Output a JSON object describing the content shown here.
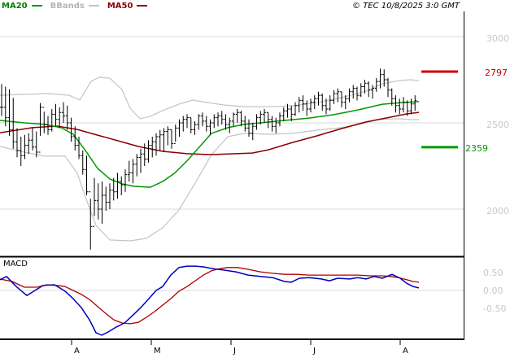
{
  "legend": {
    "ma20_label": "MA20",
    "bbands_label": "BBands",
    "ma50_label": "MA50"
  },
  "copyright": "© TEC 10/8/2025 3:0 GMT",
  "macd_label": "MACD",
  "colors": {
    "ma20": "#009900",
    "ma50": "#8b0000",
    "bbands": "#c4c4c4",
    "bars": "#000000",
    "grid": "#d8d8d8",
    "axis_text": "#c8c8c8",
    "resistance": "#cc0000",
    "support": "#009900",
    "macd_line": "#0000bb",
    "macd_signal": "#aa0000",
    "frame": "#000000",
    "month_text": "#000000"
  },
  "chart_data": {
    "type": "ohlc-with-indicators",
    "title": "",
    "price_axis": {
      "ticks": [
        3000,
        2500,
        2000
      ],
      "grid": true
    },
    "macd_axis": {
      "ticks": [
        "0.50",
        "0.00",
        "-0.50"
      ],
      "tick_values": [
        0.5,
        0,
        -0.5
      ]
    },
    "x_axis": {
      "labels": [
        "A",
        "M",
        "J",
        "J",
        "A"
      ],
      "tick_x": [
        88,
        186,
        284,
        382,
        492
      ]
    },
    "levels": {
      "resistance": 2797,
      "support": 2359
    },
    "bars_hlc": [
      [
        2725,
        2540,
        2590
      ],
      [
        2710,
        2480,
        2530
      ],
      [
        2695,
        2425,
        2460
      ],
      [
        2645,
        2350,
        2390
      ],
      [
        2470,
        2300,
        2340
      ],
      [
        2420,
        2250,
        2310
      ],
      [
        2430,
        2290,
        2370
      ],
      [
        2440,
        2320,
        2400
      ],
      [
        2470,
        2340,
        2360
      ],
      [
        2450,
        2300,
        2330
      ],
      [
        2615,
        2425,
        2590
      ],
      [
        2565,
        2440,
        2490
      ],
      [
        2540,
        2430,
        2460
      ],
      [
        2580,
        2450,
        2550
      ],
      [
        2610,
        2480,
        2520
      ],
      [
        2590,
        2470,
        2560
      ],
      [
        2620,
        2500,
        2540
      ],
      [
        2600,
        2460,
        2500
      ],
      [
        2530,
        2390,
        2420
      ],
      [
        2480,
        2340,
        2370
      ],
      [
        2420,
        2290,
        2310
      ],
      [
        2340,
        2200,
        2230
      ],
      [
        2310,
        2080,
        2100
      ],
      [
        2060,
        1765,
        1900
      ],
      [
        2180,
        1960,
        2050
      ],
      [
        2150,
        1940,
        2000
      ],
      [
        2160,
        1915,
        2080
      ],
      [
        2130,
        1990,
        2040
      ],
      [
        2150,
        2000,
        2110
      ],
      [
        2180,
        2050,
        2100
      ],
      [
        2210,
        2060,
        2160
      ],
      [
        2190,
        2080,
        2140
      ],
      [
        2230,
        2100,
        2200
      ],
      [
        2280,
        2160,
        2210
      ],
      [
        2290,
        2150,
        2260
      ],
      [
        2320,
        2190,
        2300
      ],
      [
        2350,
        2210,
        2320
      ],
      [
        2380,
        2250,
        2290
      ],
      [
        2400,
        2270,
        2370
      ],
      [
        2420,
        2300,
        2390
      ],
      [
        2440,
        2310,
        2420
      ],
      [
        2460,
        2340,
        2430
      ],
      [
        2470,
        2330,
        2450
      ],
      [
        2480,
        2370,
        2460
      ],
      [
        2460,
        2350,
        2380
      ],
      [
        2490,
        2390,
        2470
      ],
      [
        2520,
        2420,
        2500
      ],
      [
        2540,
        2450,
        2520
      ],
      [
        2550,
        2470,
        2530
      ],
      [
        2530,
        2440,
        2460
      ],
      [
        2510,
        2430,
        2490
      ],
      [
        2550,
        2460,
        2540
      ],
      [
        2560,
        2480,
        2510
      ],
      [
        2540,
        2450,
        2480
      ],
      [
        2520,
        2430,
        2500
      ],
      [
        2550,
        2470,
        2530
      ],
      [
        2560,
        2480,
        2540
      ],
      [
        2570,
        2490,
        2520
      ],
      [
        2550,
        2460,
        2490
      ],
      [
        2530,
        2440,
        2510
      ],
      [
        2560,
        2480,
        2550
      ],
      [
        2580,
        2500,
        2560
      ],
      [
        2570,
        2480,
        2510
      ],
      [
        2540,
        2450,
        2470
      ],
      [
        2520,
        2420,
        2440
      ],
      [
        2500,
        2400,
        2480
      ],
      [
        2550,
        2460,
        2530
      ],
      [
        2570,
        2490,
        2550
      ],
      [
        2580,
        2500,
        2560
      ],
      [
        2560,
        2470,
        2520
      ],
      [
        2540,
        2450,
        2480
      ],
      [
        2530,
        2440,
        2500
      ],
      [
        2560,
        2480,
        2540
      ],
      [
        2590,
        2510,
        2570
      ],
      [
        2610,
        2530,
        2580
      ],
      [
        2600,
        2510,
        2550
      ],
      [
        2620,
        2540,
        2600
      ],
      [
        2650,
        2560,
        2630
      ],
      [
        2660,
        2570,
        2610
      ],
      [
        2630,
        2540,
        2580
      ],
      [
        2640,
        2560,
        2620
      ],
      [
        2660,
        2580,
        2640
      ],
      [
        2680,
        2600,
        2660
      ],
      [
        2670,
        2570,
        2600
      ],
      [
        2640,
        2550,
        2580
      ],
      [
        2660,
        2570,
        2630
      ],
      [
        2690,
        2610,
        2670
      ],
      [
        2700,
        2620,
        2680
      ],
      [
        2680,
        2590,
        2620
      ],
      [
        2660,
        2580,
        2640
      ],
      [
        2700,
        2620,
        2680
      ],
      [
        2720,
        2640,
        2700
      ],
      [
        2710,
        2630,
        2660
      ],
      [
        2730,
        2650,
        2710
      ],
      [
        2750,
        2670,
        2730
      ],
      [
        2740,
        2650,
        2690
      ],
      [
        2720,
        2640,
        2700
      ],
      [
        2760,
        2680,
        2740
      ],
      [
        2815,
        2700,
        2780
      ],
      [
        2810,
        2710,
        2750
      ],
      [
        2760,
        2650,
        2690
      ],
      [
        2700,
        2600,
        2640
      ],
      [
        2660,
        2560,
        2600
      ],
      [
        2640,
        2550,
        2580
      ],
      [
        2650,
        2560,
        2620
      ],
      [
        2630,
        2540,
        2570
      ],
      [
        2640,
        2550,
        2610
      ],
      [
        2660,
        2570,
        2630
      ]
    ],
    "ma20": [
      [
        0,
        2514
      ],
      [
        30,
        2500
      ],
      [
        55,
        2491
      ],
      [
        75,
        2472
      ],
      [
        90,
        2434
      ],
      [
        105,
        2340
      ],
      [
        120,
        2236
      ],
      [
        135,
        2175
      ],
      [
        150,
        2146
      ],
      [
        165,
        2132
      ],
      [
        185,
        2127
      ],
      [
        200,
        2160
      ],
      [
        215,
        2210
      ],
      [
        230,
        2280
      ],
      [
        245,
        2360
      ],
      [
        260,
        2439
      ],
      [
        280,
        2472
      ],
      [
        300,
        2491
      ],
      [
        320,
        2500
      ],
      [
        350,
        2514
      ],
      [
        380,
        2528
      ],
      [
        410,
        2547
      ],
      [
        440,
        2575
      ],
      [
        470,
        2608
      ],
      [
        495,
        2618
      ],
      [
        515,
        2623
      ]
    ],
    "ma50": [
      [
        0,
        2443
      ],
      [
        40,
        2472
      ],
      [
        70,
        2481
      ],
      [
        95,
        2462
      ],
      [
        120,
        2429
      ],
      [
        145,
        2396
      ],
      [
        170,
        2363
      ],
      [
        200,
        2335
      ],
      [
        230,
        2321
      ],
      [
        260,
        2316
      ],
      [
        290,
        2321
      ],
      [
        310,
        2325
      ],
      [
        330,
        2344
      ],
      [
        360,
        2387
      ],
      [
        390,
        2425
      ],
      [
        420,
        2467
      ],
      [
        450,
        2505
      ],
      [
        480,
        2533
      ],
      [
        500,
        2552
      ],
      [
        515,
        2561
      ]
    ],
    "bb_upper": [
      [
        0,
        2660
      ],
      [
        30,
        2665
      ],
      [
        60,
        2670
      ],
      [
        85,
        2660
      ],
      [
        98,
        2632
      ],
      [
        112,
        2741
      ],
      [
        122,
        2764
      ],
      [
        135,
        2759
      ],
      [
        150,
        2693
      ],
      [
        160,
        2585
      ],
      [
        172,
        2524
      ],
      [
        185,
        2538
      ],
      [
        200,
        2571
      ],
      [
        220,
        2608
      ],
      [
        237,
        2632
      ],
      [
        255,
        2618
      ],
      [
        275,
        2604
      ],
      [
        300,
        2594
      ],
      [
        330,
        2594
      ],
      [
        360,
        2599
      ],
      [
        390,
        2618
      ],
      [
        420,
        2646
      ],
      [
        450,
        2684
      ],
      [
        470,
        2726
      ],
      [
        490,
        2745
      ],
      [
        505,
        2750
      ],
      [
        515,
        2745
      ]
    ],
    "bb_lower": [
      [
        0,
        2363
      ],
      [
        25,
        2335
      ],
      [
        55,
        2307
      ],
      [
        80,
        2307
      ],
      [
        95,
        2208
      ],
      [
        105,
        2071
      ],
      [
        118,
        1906
      ],
      [
        135,
        1821
      ],
      [
        160,
        1816
      ],
      [
        180,
        1830
      ],
      [
        200,
        1892
      ],
      [
        220,
        1995
      ],
      [
        240,
        2151
      ],
      [
        260,
        2316
      ],
      [
        280,
        2420
      ],
      [
        300,
        2439
      ],
      [
        330,
        2434
      ],
      [
        360,
        2439
      ],
      [
        390,
        2458
      ],
      [
        420,
        2472
      ],
      [
        445,
        2495
      ],
      [
        465,
        2519
      ],
      [
        490,
        2524
      ],
      [
        505,
        2519
      ],
      [
        515,
        2519
      ]
    ],
    "macd": {
      "line": [
        [
          0,
          0.3
        ],
        [
          8,
          0.39
        ],
        [
          20,
          0.11
        ],
        [
          33,
          -0.14
        ],
        [
          43,
          0.0
        ],
        [
          53,
          0.14
        ],
        [
          67,
          0.16
        ],
        [
          80,
          -0.02
        ],
        [
          90,
          -0.23
        ],
        [
          100,
          -0.48
        ],
        [
          110,
          -0.82
        ],
        [
          118,
          -1.18
        ],
        [
          125,
          -1.25
        ],
        [
          133,
          -1.16
        ],
        [
          143,
          -1.02
        ],
        [
          153,
          -0.91
        ],
        [
          163,
          -0.7
        ],
        [
          173,
          -0.48
        ],
        [
          183,
          -0.23
        ],
        [
          192,
          0.0
        ],
        [
          200,
          0.11
        ],
        [
          210,
          0.43
        ],
        [
          220,
          0.64
        ],
        [
          230,
          0.68
        ],
        [
          240,
          0.68
        ],
        [
          250,
          0.66
        ],
        [
          262,
          0.61
        ],
        [
          275,
          0.57
        ],
        [
          290,
          0.52
        ],
        [
          305,
          0.43
        ],
        [
          320,
          0.39
        ],
        [
          335,
          0.36
        ],
        [
          350,
          0.25
        ],
        [
          358,
          0.23
        ],
        [
          368,
          0.34
        ],
        [
          380,
          0.36
        ],
        [
          395,
          0.32
        ],
        [
          405,
          0.27
        ],
        [
          415,
          0.34
        ],
        [
          430,
          0.32
        ],
        [
          440,
          0.36
        ],
        [
          450,
          0.32
        ],
        [
          460,
          0.39
        ],
        [
          470,
          0.34
        ],
        [
          482,
          0.45
        ],
        [
          492,
          0.34
        ],
        [
          500,
          0.2
        ],
        [
          508,
          0.11
        ],
        [
          515,
          0.07
        ]
      ],
      "signal": [
        [
          0,
          0.32
        ],
        [
          15,
          0.25
        ],
        [
          30,
          0.09
        ],
        [
          45,
          0.09
        ],
        [
          58,
          0.16
        ],
        [
          70,
          0.14
        ],
        [
          80,
          0.11
        ],
        [
          90,
          0.0
        ],
        [
          100,
          -0.11
        ],
        [
          110,
          -0.25
        ],
        [
          120,
          -0.45
        ],
        [
          130,
          -0.64
        ],
        [
          140,
          -0.82
        ],
        [
          150,
          -0.91
        ],
        [
          160,
          -0.93
        ],
        [
          170,
          -0.89
        ],
        [
          180,
          -0.75
        ],
        [
          190,
          -0.59
        ],
        [
          200,
          -0.41
        ],
        [
          210,
          -0.23
        ],
        [
          220,
          -0.02
        ],
        [
          230,
          0.11
        ],
        [
          240,
          0.27
        ],
        [
          250,
          0.43
        ],
        [
          260,
          0.55
        ],
        [
          270,
          0.61
        ],
        [
          280,
          0.64
        ],
        [
          292,
          0.64
        ],
        [
          305,
          0.59
        ],
        [
          320,
          0.52
        ],
        [
          335,
          0.48
        ],
        [
          350,
          0.45
        ],
        [
          365,
          0.45
        ],
        [
          380,
          0.43
        ],
        [
          400,
          0.43
        ],
        [
          420,
          0.43
        ],
        [
          440,
          0.43
        ],
        [
          455,
          0.41
        ],
        [
          470,
          0.41
        ],
        [
          480,
          0.39
        ],
        [
          490,
          0.36
        ],
        [
          500,
          0.3
        ],
        [
          508,
          0.25
        ],
        [
          515,
          0.23
        ]
      ]
    }
  }
}
